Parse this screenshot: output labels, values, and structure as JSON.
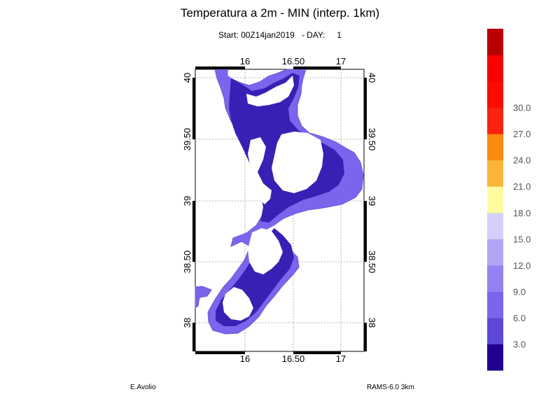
{
  "title": "Temperatura a 2m - MIN (interp. 1km)",
  "subtitle": {
    "start_label": "Start:",
    "start_value": "00Z14jan2019",
    "day_label": "- DAY:",
    "day_value": "1"
  },
  "author": "E.Avolio",
  "model": "RAMS-6.0 3km",
  "map": {
    "lon_ticks": [
      {
        "value": 16,
        "label": "16"
      },
      {
        "value": 16.5,
        "label": "16.50"
      },
      {
        "value": 17,
        "label": "17"
      }
    ],
    "lat_ticks": [
      {
        "value": 40,
        "label": "40"
      },
      {
        "value": 39.5,
        "label": "39.50"
      },
      {
        "value": 39,
        "label": "39"
      },
      {
        "value": 38.5,
        "label": "38.50"
      },
      {
        "value": 38,
        "label": "38"
      }
    ],
    "lon_range": [
      15.5,
      17.25
    ],
    "lat_range": [
      37.75,
      40.05
    ],
    "grid": true
  },
  "colorbar": {
    "colors": [
      "#1f0090",
      "#5b48d7",
      "#7a66ec",
      "#9283f0",
      "#b0a6f4",
      "#d5d0fb",
      "#fdfb9d",
      "#fcb53a",
      "#fb8b10",
      "#fb2210",
      "#fb0c00",
      "#fb0000",
      "#b80000"
    ],
    "labels": [
      "3.0",
      "6.0",
      "9.0",
      "12.0",
      "15.0",
      "18.0",
      "21.0",
      "24.0",
      "27.0",
      "30.0"
    ]
  }
}
